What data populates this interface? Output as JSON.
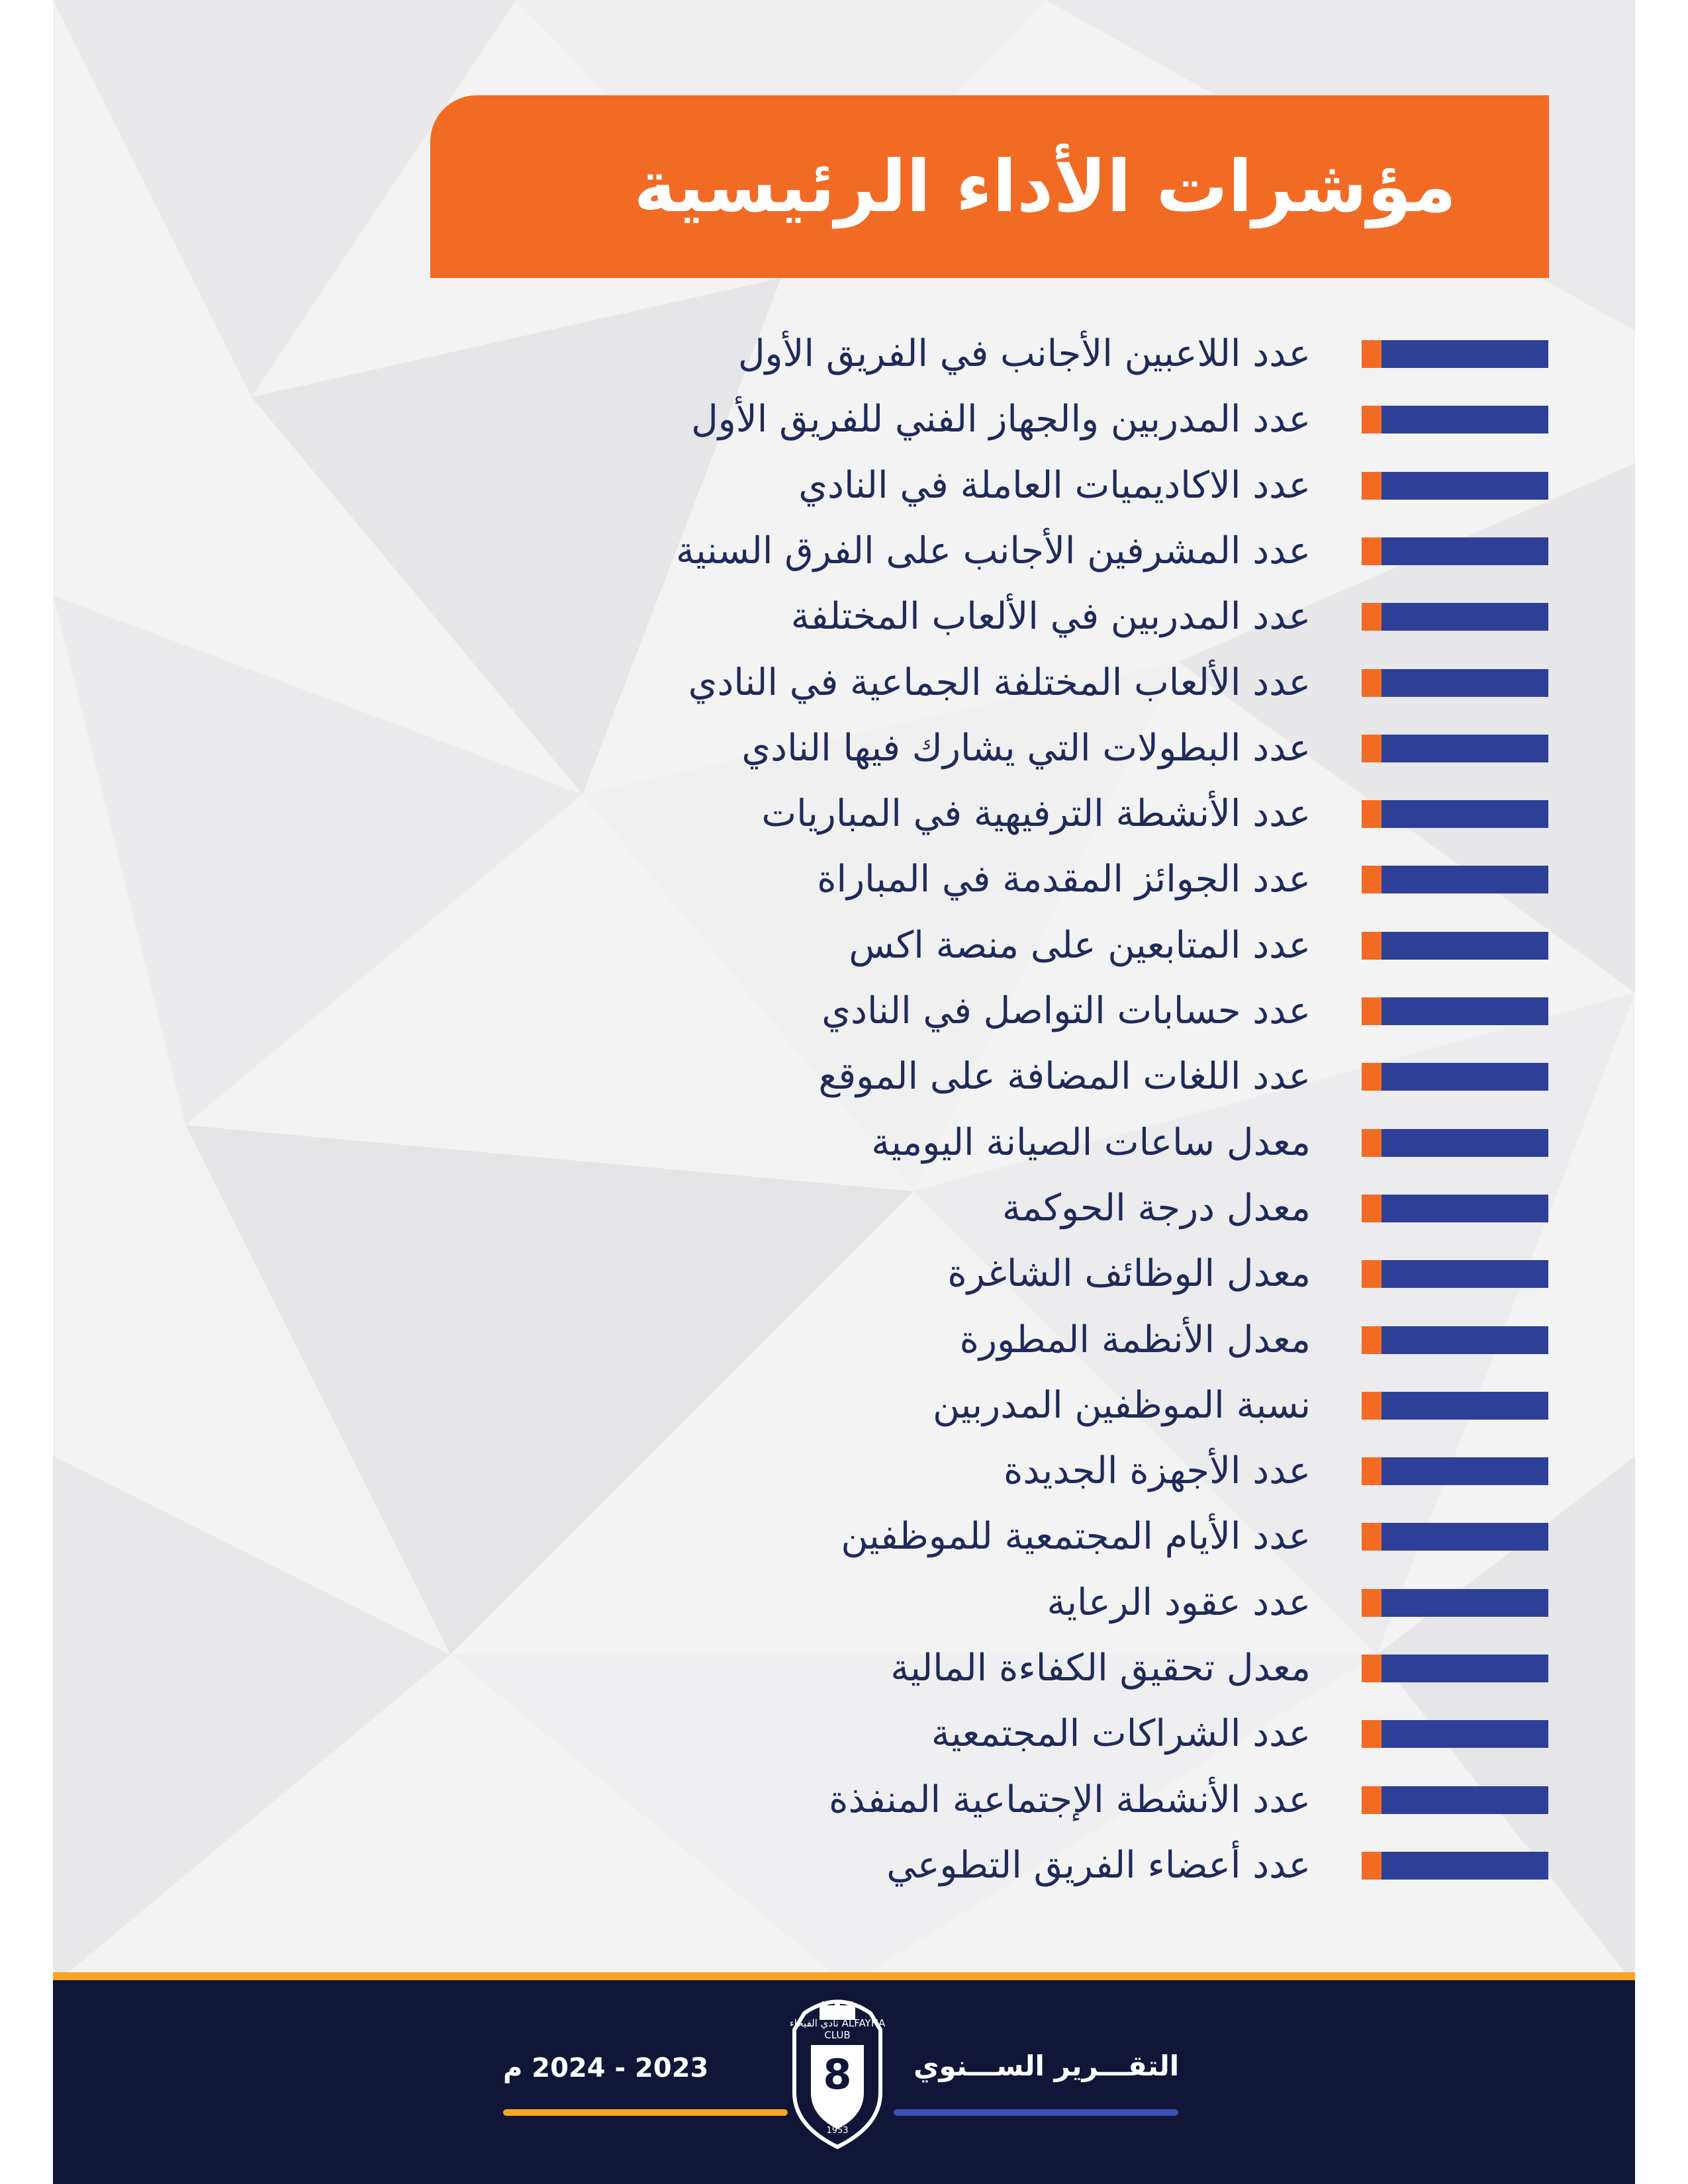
{
  "page": {
    "title": "مؤشرات الأداء الرئيسية",
    "colors": {
      "accent": "#f26b24",
      "marker_blue": "#2e3f98",
      "text": "#1e2a5a",
      "footer": "#111638"
    }
  },
  "indicators": [
    "عدد اللاعبين الأجانب في الفريق الأول",
    "عدد المدربين والجهاز الفني للفريق الأول",
    "عدد الاكاديميات العاملة في النادي",
    "عدد المشرفين الأجانب على  الفرق السنية",
    "عدد المدربين في الألعاب المختلفة",
    "عدد الألعاب المختلفة الجماعية في النادي",
    "عدد البطولات التي يشارك فيها النادي",
    "عدد الأنشطة الترفيهية في المباريات",
    "عدد الجوائز المقدمة في المباراة",
    "عدد المتابعين على منصة اكس",
    "عدد حسابات التواصل في النادي",
    "عدد اللغات المضافة على الموقع",
    "معدل ساعات الصيانة اليومية",
    "معدل درجة الحوكمة",
    "معدل الوظائف الشاغرة",
    "معدل الأنظمة المطورة",
    "نسبة الموظفين المدربين",
    "عدد الأجهزة الجديدة",
    "عدد الأيام المجتمعية للموظفين",
    "عدد عقود الرعاية",
    "معدل تحقيق الكفاءة المالية",
    "عدد الشراكات المجتمعية",
    "عدد الأنشطة الإجتماعية المنفذة",
    "عدد أعضاء الفريق التطوعي"
  ],
  "footer": {
    "report_label": "التقـــرير الســـنوي",
    "years": "2023 - 2024 م",
    "logo": {
      "number": "8",
      "ring_text": "نادي الفيحاء ALFAYHA CLUB",
      "year": "1953"
    }
  }
}
